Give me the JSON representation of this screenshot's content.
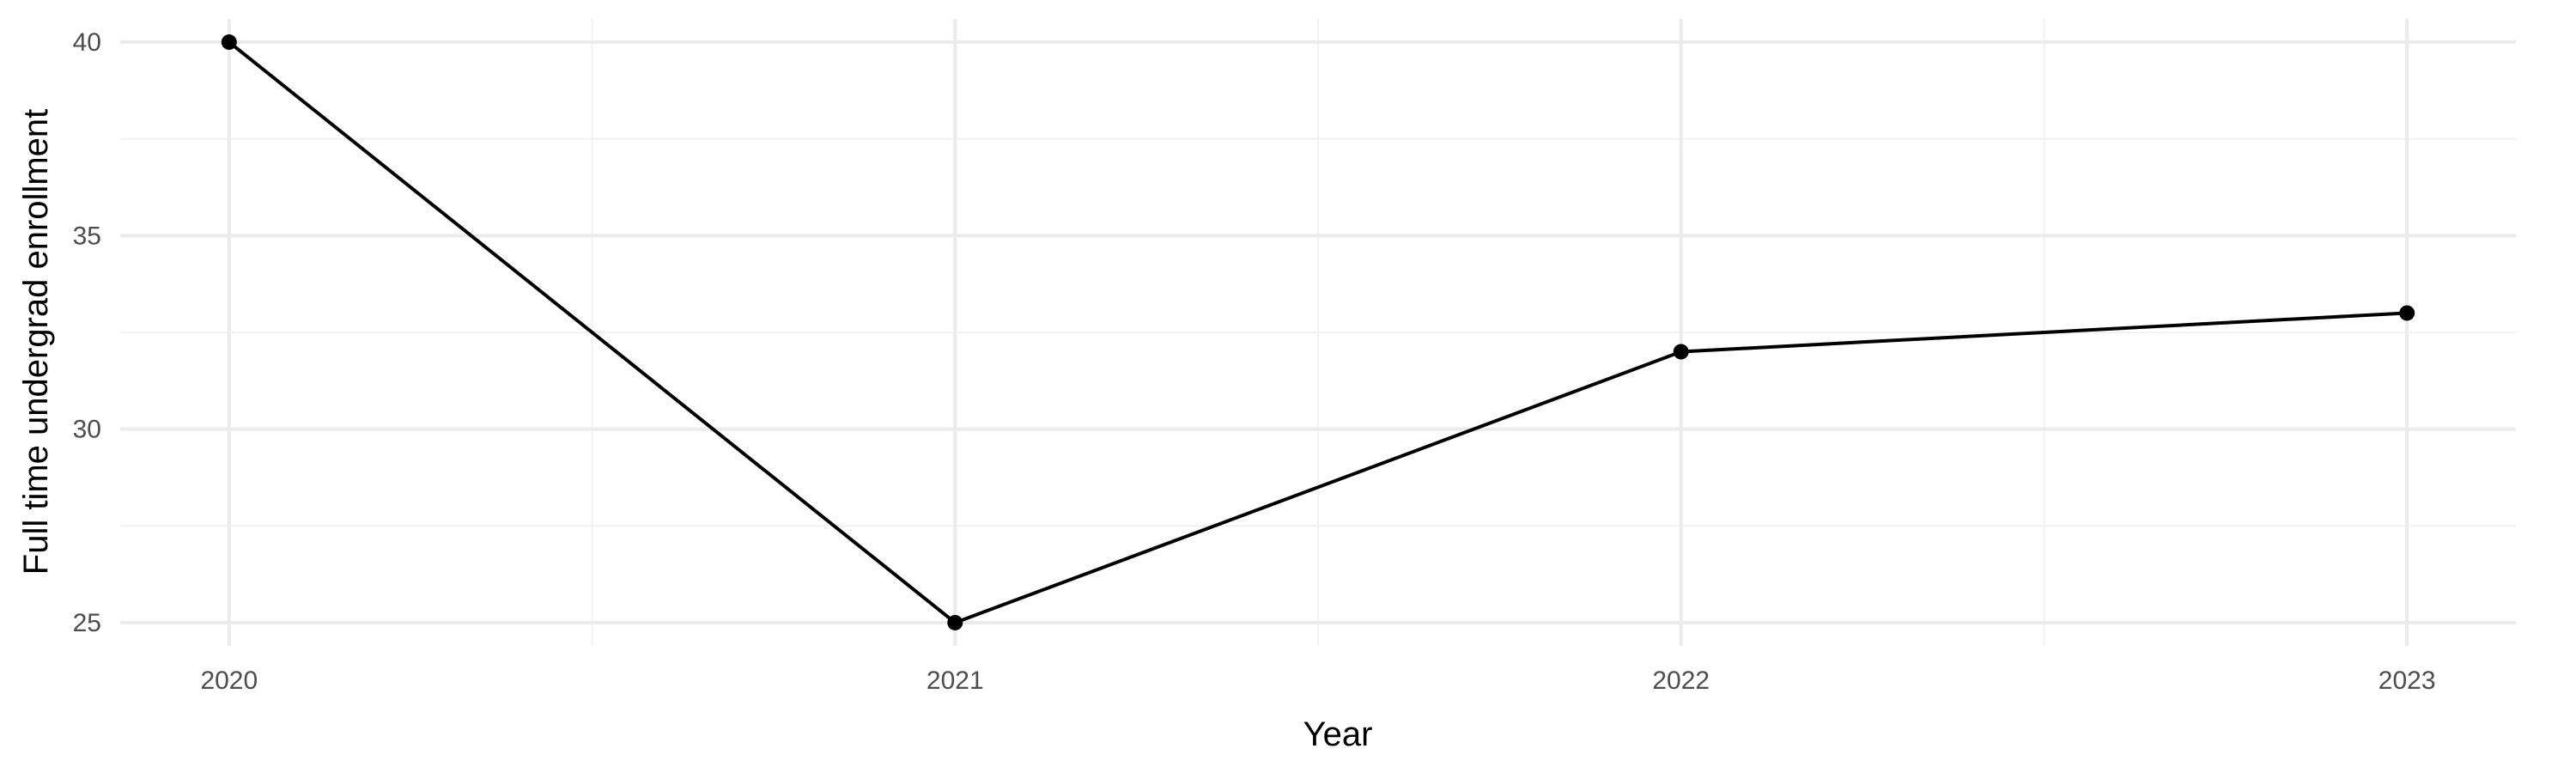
{
  "chart_data": {
    "type": "line",
    "xlabel": "Year",
    "ylabel": "Full time undergrad enrollment",
    "x": [
      2020,
      2021,
      2022,
      2023
    ],
    "series": [
      {
        "values": [
          40,
          25,
          32,
          33
        ]
      }
    ],
    "x_ticks": [
      "2020",
      "2021",
      "2022",
      "2023"
    ],
    "y_ticks": [
      25,
      30,
      35,
      40
    ],
    "xlim": [
      2019.85,
      2023.15
    ],
    "ylim": [
      24.4,
      40.6
    ],
    "grid": true,
    "markers": true,
    "line_color": "#000000",
    "background": "#ffffff"
  }
}
